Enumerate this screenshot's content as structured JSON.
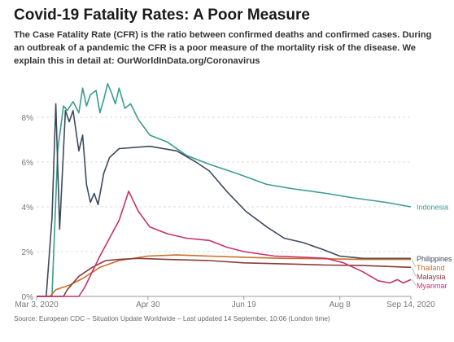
{
  "title": "Covid-19 Fatality Rates: A Poor Measure",
  "subtitle": "The Case Fatality Rate (CFR) is the ratio between confirmed deaths and confirmed cases. During an outbreak of a pandemic the CFR is a poor measure of the mortality risk of the disease. We explain this in detail at: OurWorldInData.org/Coronavirus",
  "source": "Source: European CDC – Situation Update Worldwide – Last updated 14 September, 10:06 (London time)",
  "colors": {
    "Indonesia": "#3a9c92",
    "Philippines": "#3d4a5e",
    "Thailand": "#c9702a",
    "Malaysia": "#8a3b3b",
    "Myanmar": "#c8306e",
    "grid": "#dddddd",
    "axis_text": "#777777"
  },
  "chart_data": {
    "type": "line",
    "title": "Covid-19 Fatality Rates: A Poor Measure",
    "xlabel": "",
    "ylabel": "",
    "x_ticks": [
      "Mar 3, 2020",
      "Apr 30",
      "Jun 19",
      "Aug 8",
      "Sep 14, 2020"
    ],
    "xlim": [
      "2020-03-03",
      "2020-09-14"
    ],
    "y_ticks": [
      "0%",
      "2%",
      "4%",
      "6%",
      "8%"
    ],
    "ylim": [
      0,
      9.6
    ],
    "grid": true,
    "legend": "labels at right end of lines",
    "series": [
      {
        "name": "Indonesia",
        "points": [
          [
            "2020-03-03",
            0
          ],
          [
            "2020-03-11",
            0
          ],
          [
            "2020-03-14",
            6.5
          ],
          [
            "2020-03-17",
            8.5
          ],
          [
            "2020-03-19",
            8.3
          ],
          [
            "2020-03-22",
            8.7
          ],
          [
            "2020-03-25",
            8.2
          ],
          [
            "2020-03-27",
            9.3
          ],
          [
            "2020-03-29",
            8.5
          ],
          [
            "2020-03-31",
            9.0
          ],
          [
            "2020-04-03",
            9.2
          ],
          [
            "2020-04-05",
            8.2
          ],
          [
            "2020-04-07",
            8.8
          ],
          [
            "2020-04-09",
            9.5
          ],
          [
            "2020-04-11",
            9.1
          ],
          [
            "2020-04-13",
            8.6
          ],
          [
            "2020-04-15",
            9.3
          ],
          [
            "2020-04-18",
            8.4
          ],
          [
            "2020-04-21",
            8.6
          ],
          [
            "2020-04-25",
            7.9
          ],
          [
            "2020-05-01",
            7.2
          ],
          [
            "2020-05-10",
            6.9
          ],
          [
            "2020-05-20",
            6.3
          ],
          [
            "2020-06-01",
            5.9
          ],
          [
            "2020-06-15",
            5.5
          ],
          [
            "2020-07-01",
            5.0
          ],
          [
            "2020-07-15",
            4.8
          ],
          [
            "2020-08-01",
            4.6
          ],
          [
            "2020-08-15",
            4.4
          ],
          [
            "2020-09-01",
            4.2
          ],
          [
            "2020-09-14",
            4.0
          ]
        ]
      },
      {
        "name": "Philippines",
        "points": [
          [
            "2020-03-03",
            0
          ],
          [
            "2020-03-08",
            0
          ],
          [
            "2020-03-11",
            3.5
          ],
          [
            "2020-03-13",
            8.6
          ],
          [
            "2020-03-15",
            3.0
          ],
          [
            "2020-03-18",
            8.3
          ],
          [
            "2020-03-20",
            7.8
          ],
          [
            "2020-03-22",
            8.3
          ],
          [
            "2020-03-25",
            6.5
          ],
          [
            "2020-03-27",
            7.2
          ],
          [
            "2020-03-29",
            5.0
          ],
          [
            "2020-03-31",
            4.2
          ],
          [
            "2020-04-02",
            4.6
          ],
          [
            "2020-04-04",
            4.1
          ],
          [
            "2020-04-07",
            5.5
          ],
          [
            "2020-04-10",
            6.2
          ],
          [
            "2020-04-15",
            6.6
          ],
          [
            "2020-05-01",
            6.7
          ],
          [
            "2020-05-15",
            6.5
          ],
          [
            "2020-05-25",
            6.0
          ],
          [
            "2020-06-01",
            5.6
          ],
          [
            "2020-06-10",
            4.7
          ],
          [
            "2020-06-20",
            3.8
          ],
          [
            "2020-07-01",
            3.1
          ],
          [
            "2020-07-10",
            2.6
          ],
          [
            "2020-07-20",
            2.4
          ],
          [
            "2020-07-30",
            2.1
          ],
          [
            "2020-08-08",
            1.8
          ],
          [
            "2020-08-20",
            1.7
          ],
          [
            "2020-09-01",
            1.7
          ],
          [
            "2020-09-14",
            1.7
          ]
        ]
      },
      {
        "name": "Thailand",
        "points": [
          [
            "2020-03-03",
            0
          ],
          [
            "2020-03-10",
            0
          ],
          [
            "2020-03-13",
            0.3
          ],
          [
            "2020-03-20",
            0.5
          ],
          [
            "2020-03-27",
            0.8
          ],
          [
            "2020-04-05",
            1.3
          ],
          [
            "2020-04-15",
            1.6
          ],
          [
            "2020-04-30",
            1.8
          ],
          [
            "2020-05-15",
            1.85
          ],
          [
            "2020-06-01",
            1.8
          ],
          [
            "2020-06-19",
            1.75
          ],
          [
            "2020-07-10",
            1.7
          ],
          [
            "2020-08-01",
            1.68
          ],
          [
            "2020-08-20",
            1.65
          ],
          [
            "2020-09-14",
            1.65
          ]
        ]
      },
      {
        "name": "Malaysia",
        "points": [
          [
            "2020-03-03",
            0
          ],
          [
            "2020-03-17",
            0
          ],
          [
            "2020-03-19",
            0.3
          ],
          [
            "2020-03-25",
            0.9
          ],
          [
            "2020-04-01",
            1.3
          ],
          [
            "2020-04-08",
            1.6
          ],
          [
            "2020-04-15",
            1.65
          ],
          [
            "2020-04-25",
            1.7
          ],
          [
            "2020-05-10",
            1.65
          ],
          [
            "2020-06-01",
            1.6
          ],
          [
            "2020-06-19",
            1.5
          ],
          [
            "2020-07-10",
            1.45
          ],
          [
            "2020-08-01",
            1.4
          ],
          [
            "2020-08-20",
            1.38
          ],
          [
            "2020-09-14",
            1.3
          ]
        ]
      },
      {
        "name": "Myanmar",
        "points": [
          [
            "2020-03-03",
            0
          ],
          [
            "2020-03-25",
            0
          ],
          [
            "2020-03-28",
            0.4
          ],
          [
            "2020-04-05",
            1.8
          ],
          [
            "2020-04-10",
            2.6
          ],
          [
            "2020-04-15",
            3.4
          ],
          [
            "2020-04-20",
            4.7
          ],
          [
            "2020-04-25",
            3.8
          ],
          [
            "2020-05-01",
            3.1
          ],
          [
            "2020-05-10",
            2.8
          ],
          [
            "2020-05-20",
            2.6
          ],
          [
            "2020-06-01",
            2.5
          ],
          [
            "2020-06-10",
            2.2
          ],
          [
            "2020-06-19",
            2.0
          ],
          [
            "2020-07-05",
            1.8
          ],
          [
            "2020-07-20",
            1.75
          ],
          [
            "2020-08-01",
            1.7
          ],
          [
            "2020-08-10",
            1.5
          ],
          [
            "2020-08-20",
            1.1
          ],
          [
            "2020-08-28",
            0.7
          ],
          [
            "2020-09-03",
            0.6
          ],
          [
            "2020-09-07",
            0.75
          ],
          [
            "2020-09-10",
            0.6
          ],
          [
            "2020-09-14",
            0.75
          ]
        ]
      }
    ]
  }
}
